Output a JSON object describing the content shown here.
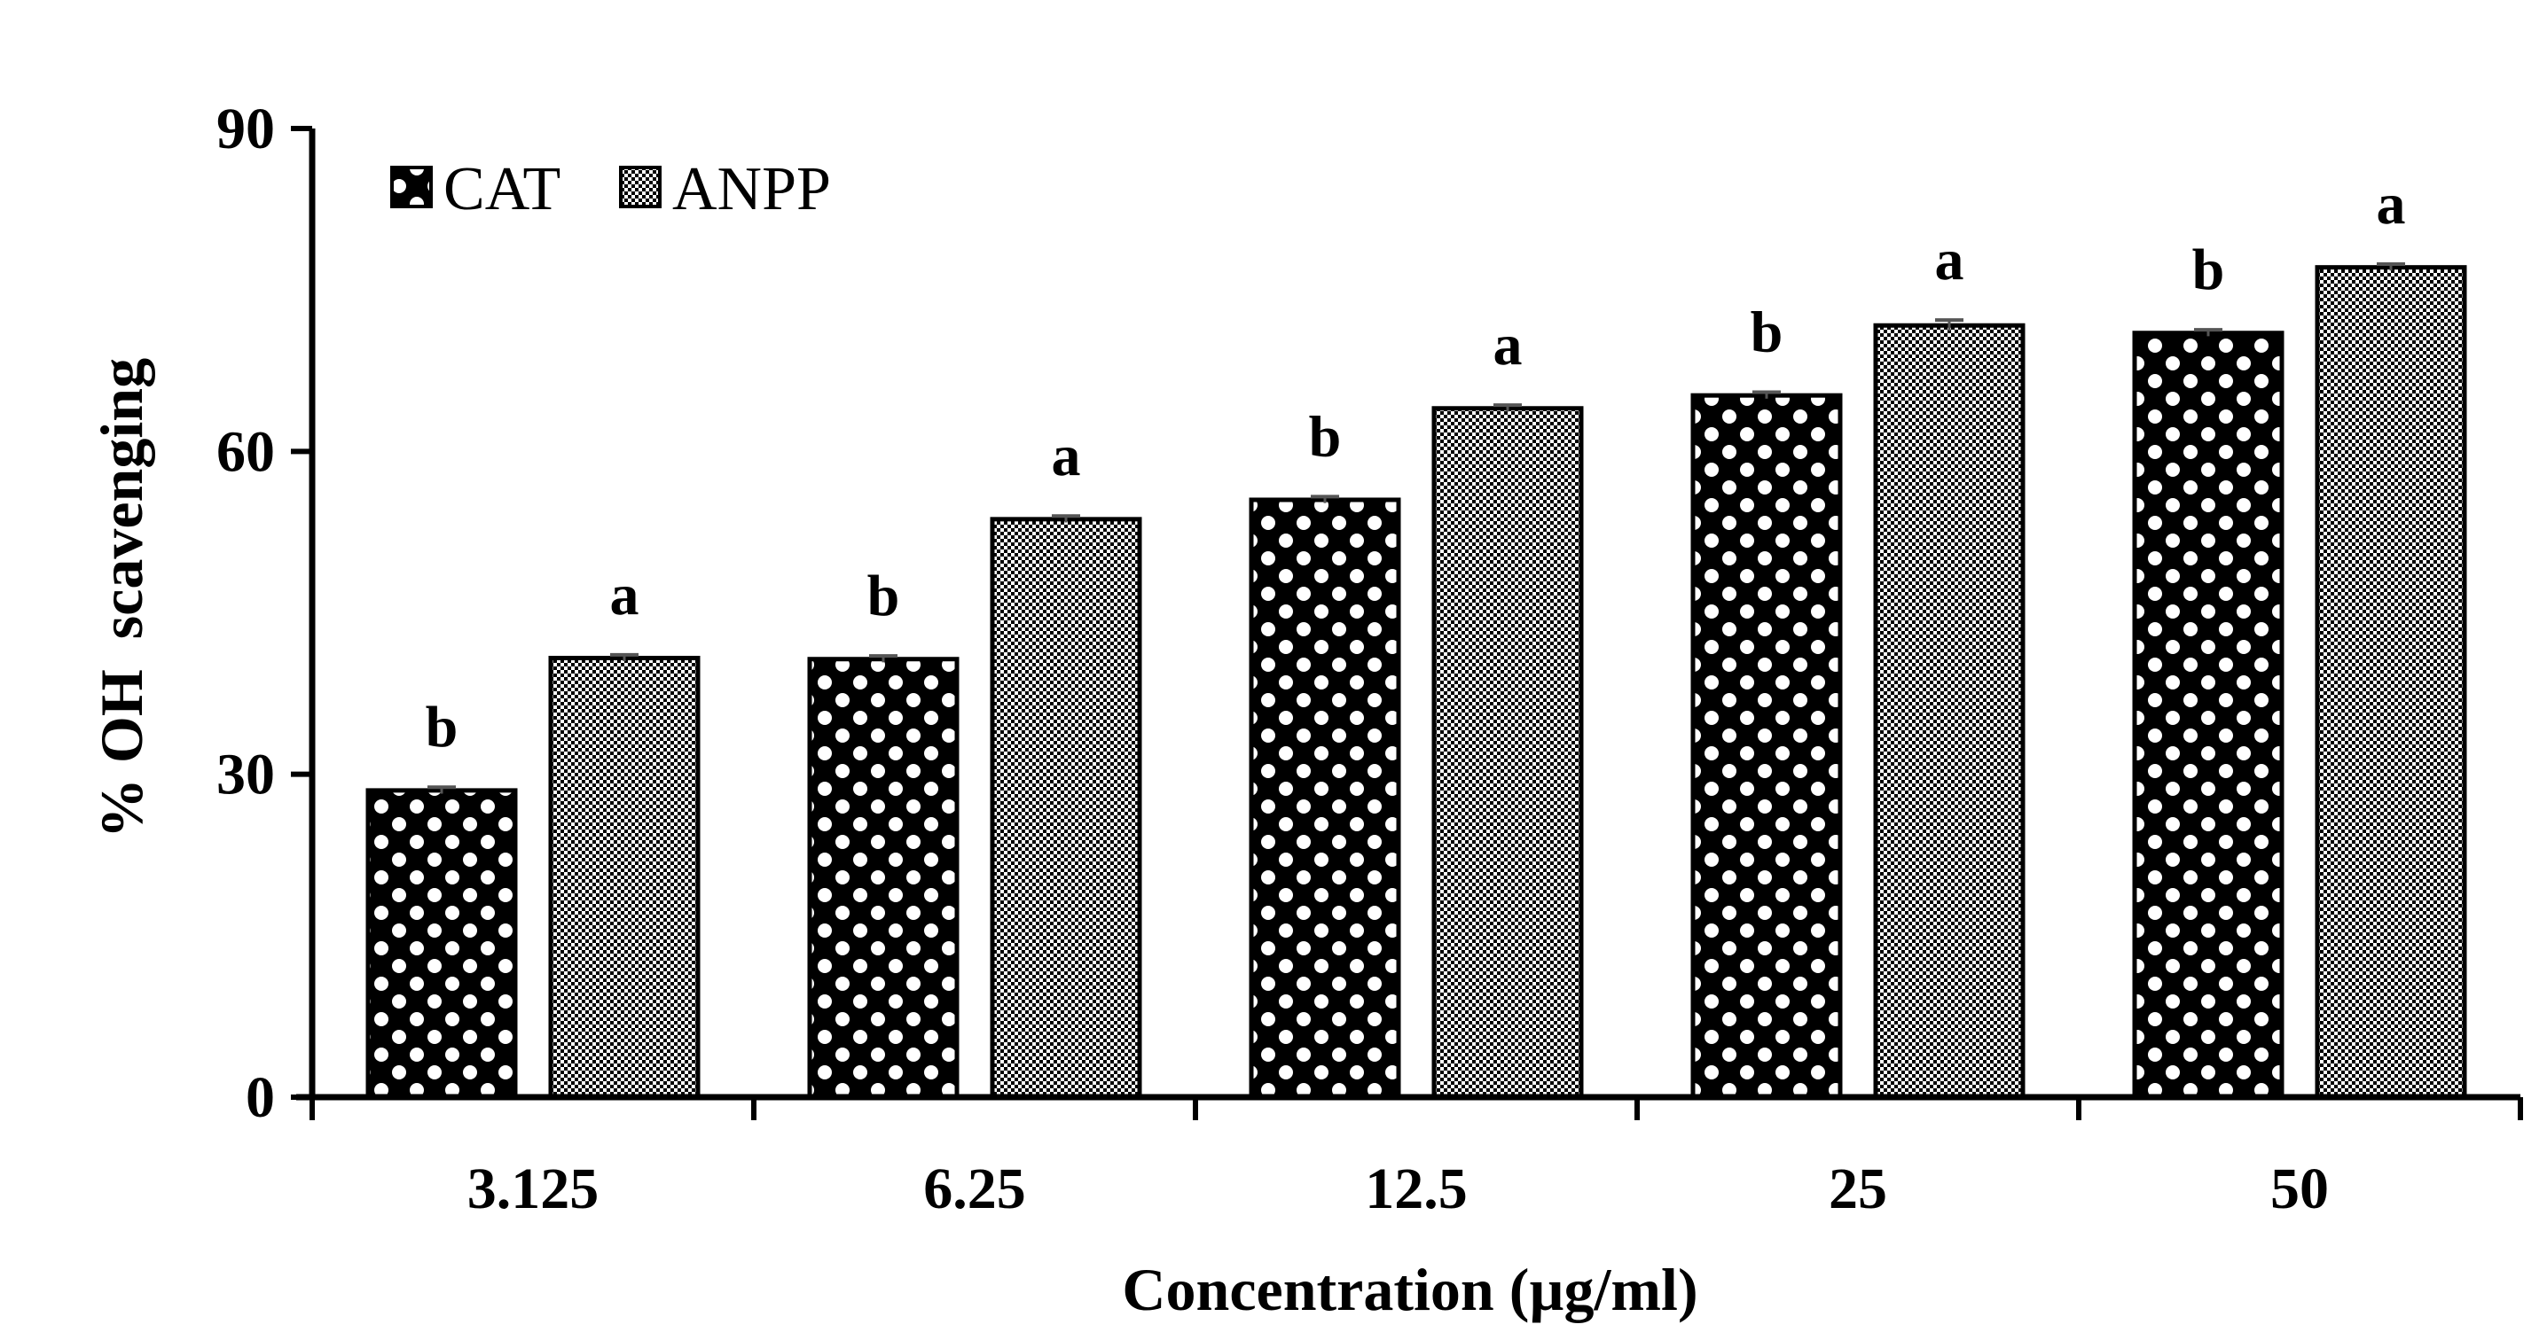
{
  "chart_data": {
    "type": "bar",
    "categories": [
      "3.125",
      "6.25",
      "12.5",
      "25",
      "50"
    ],
    "series": [
      {
        "name": "CAT",
        "values": [
          28.5,
          40.7,
          55.5,
          65.2,
          71.0
        ],
        "errors": [
          0.3,
          0.3,
          0.3,
          0.3,
          0.3
        ],
        "labels": [
          "b",
          "b",
          "b",
          "b",
          "b"
        ],
        "pattern": "checker-circles"
      },
      {
        "name": "ANPP",
        "values": [
          40.8,
          53.7,
          64.0,
          71.7,
          77.1
        ],
        "errors": [
          0.3,
          0.3,
          0.3,
          0.5,
          0.3
        ],
        "labels": [
          "a",
          "a",
          "a",
          "a",
          "a"
        ],
        "pattern": "fine-checker"
      }
    ],
    "xlabel": "Concentration (µg/ml)",
    "ylabel": "% OH  scavenging",
    "ylim": [
      0,
      90
    ],
    "yticks": [
      "0",
      "30",
      "60",
      "90"
    ],
    "grid": false,
    "legend_position": "top-left",
    "colors": {
      "bar_fill": "#000000",
      "pattern_light": "#ffffff",
      "axis": "#000000",
      "error_bar": "#555555"
    }
  }
}
